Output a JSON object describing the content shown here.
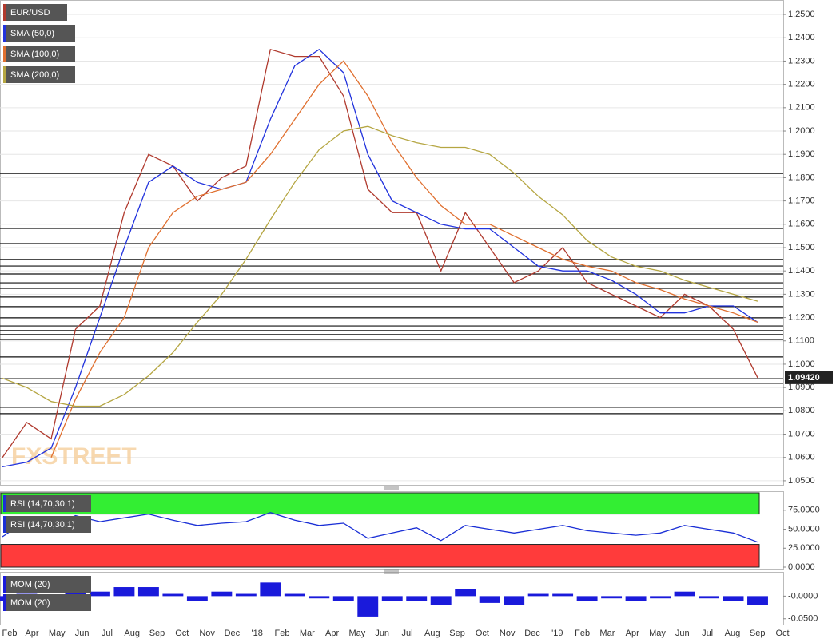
{
  "chart_data": [
    {
      "type": "line",
      "series": [
        {
          "name": "EUR/USD",
          "color": "#b03a2e",
          "values": [
            1.06,
            1.075,
            1.068,
            1.115,
            1.125,
            1.165,
            1.19,
            1.185,
            1.17,
            1.18,
            1.185,
            1.235,
            1.232,
            1.232,
            1.215,
            1.175,
            1.165,
            1.165,
            1.14,
            1.165,
            1.15,
            1.135,
            1.14,
            1.15,
            1.135,
            1.13,
            1.125,
            1.12,
            1.13,
            1.125,
            1.115,
            1.0942
          ]
        },
        {
          "name": "SMA (50,0)",
          "color": "#2233dd",
          "values": [
            1.056,
            1.058,
            1.064,
            1.09,
            1.12,
            1.15,
            1.178,
            1.185,
            1.178,
            1.175,
            1.178,
            1.205,
            1.228,
            1.235,
            1.225,
            1.19,
            1.17,
            1.165,
            1.16,
            1.158,
            1.158,
            1.15,
            1.142,
            1.14,
            1.14,
            1.136,
            1.13,
            1.122,
            1.122,
            1.125,
            1.125,
            1.118
          ]
        },
        {
          "name": "SMA (100,0)",
          "color": "#e07030",
          "values": [
            null,
            null,
            1.06,
            1.085,
            1.105,
            1.12,
            1.15,
            1.165,
            1.172,
            1.175,
            1.178,
            1.19,
            1.205,
            1.22,
            1.23,
            1.215,
            1.195,
            1.18,
            1.168,
            1.16,
            1.16,
            1.155,
            1.15,
            1.145,
            1.142,
            1.14,
            1.135,
            1.132,
            1.128,
            1.125,
            1.122,
            1.118
          ]
        },
        {
          "name": "SMA (200,0)",
          "color": "#b5a642",
          "values": [
            1.094,
            1.09,
            1.084,
            1.082,
            1.082,
            1.087,
            1.095,
            1.105,
            1.118,
            1.13,
            1.145,
            1.162,
            1.178,
            1.192,
            1.2,
            1.202,
            1.198,
            1.195,
            1.193,
            1.193,
            1.19,
            1.182,
            1.172,
            1.164,
            1.153,
            1.146,
            1.142,
            1.14,
            1.136,
            1.133,
            1.13,
            1.127
          ]
        }
      ],
      "ylim": [
        1.0486,
        1.2555
      ],
      "yticks": [
        {
          "value": 1.05,
          "label": "1.0500"
        },
        {
          "value": 1.06,
          "label": "1.0600"
        },
        {
          "value": 1.07,
          "label": "1.0700"
        },
        {
          "value": 1.08,
          "label": "1.0800"
        },
        {
          "value": 1.09,
          "label": "1.0900"
        },
        {
          "value": 1.1,
          "label": "1.1000"
        },
        {
          "value": 1.11,
          "label": "1.1100"
        },
        {
          "value": 1.12,
          "label": "1.1200"
        },
        {
          "value": 1.13,
          "label": "1.1300"
        },
        {
          "value": 1.14,
          "label": "1.1400"
        },
        {
          "value": 1.15,
          "label": "1.1500"
        },
        {
          "value": 1.16,
          "label": "1.1600"
        },
        {
          "value": 1.17,
          "label": "1.1700"
        },
        {
          "value": 1.18,
          "label": "1.1800"
        },
        {
          "value": 1.19,
          "label": "1.1900"
        },
        {
          "value": 1.2,
          "label": "1.2000"
        },
        {
          "value": 1.21,
          "label": "1.2100"
        },
        {
          "value": 1.22,
          "label": "1.2200"
        },
        {
          "value": 1.23,
          "label": "1.2300"
        },
        {
          "value": 1.24,
          "label": "1.2400"
        },
        {
          "value": 1.25,
          "label": "1.2500"
        }
      ],
      "grid": true,
      "levels": [
        1.1818,
        1.1582,
        1.1517,
        1.1449,
        1.1421,
        1.1387,
        1.1349,
        1.1325,
        1.1288,
        1.1247,
        1.1199,
        1.1164,
        1.1144,
        1.1127,
        1.1106,
        1.1031,
        1.0938,
        1.0918,
        1.0815,
        1.0788
      ],
      "last_price": {
        "value": 1.0942,
        "label": "1.09420"
      },
      "watermark": "FXSTREET",
      "x_labels": [
        "Feb",
        "Apr",
        "May",
        "Jun",
        "Jul",
        "Aug",
        "Sep",
        "Oct",
        "Nov",
        "Dec",
        "'18",
        "Feb",
        "Mar",
        "Apr",
        "May",
        "Jun",
        "Jul",
        "Aug",
        "Sep",
        "Oct",
        "Nov",
        "Dec",
        "'19",
        "Feb",
        "Mar",
        "Apr",
        "May",
        "Jun",
        "Jul",
        "Aug",
        "Sep",
        "Oct"
      ]
    },
    {
      "type": "line",
      "indicator_label": "RSI (14,70,30,1)",
      "series": [
        {
          "name": "RSI (14,70,30,1)",
          "color": "#1a2fd6",
          "values": [
            40,
            62,
            55,
            68,
            60,
            65,
            70,
            62,
            55,
            58,
            60,
            72,
            62,
            55,
            58,
            38,
            45,
            52,
            35,
            55,
            50,
            45,
            50,
            55,
            48,
            45,
            42,
            45,
            55,
            50,
            45,
            33
          ]
        }
      ],
      "ylim": [
        0,
        98
      ],
      "yticks": [
        {
          "value": 75,
          "label": "75.0000"
        },
        {
          "value": 50,
          "label": "50.0000"
        },
        {
          "value": 25,
          "label": "25.0000"
        },
        {
          "value": 0,
          "label": "0.0000"
        }
      ],
      "overbought": 70,
      "oversold": 30,
      "overbought_color": "#33ee33",
      "oversold_color": "#ff3b3b"
    },
    {
      "type": "bar",
      "indicator_label": "MOM (20)",
      "series": [
        {
          "name": "MOM (20)",
          "color": "#1a1adb",
          "values": [
            -0.01,
            0.005,
            -0.005,
            0.02,
            0.01,
            0.02,
            0.02,
            0.005,
            -0.01,
            0.01,
            0.005,
            0.03,
            0.005,
            -0.005,
            -0.01,
            -0.045,
            -0.01,
            -0.01,
            -0.02,
            0.015,
            -0.015,
            -0.02,
            0.005,
            0.005,
            -0.01,
            -0.005,
            -0.01,
            -0.005,
            0.01,
            -0.005,
            -0.01,
            -0.02
          ]
        }
      ],
      "ylim": [
        -0.061,
        0.05
      ],
      "yticks": [
        {
          "value": 0,
          "label": "-0.0000"
        },
        {
          "value": -0.05,
          "label": "-0.0500"
        }
      ]
    }
  ]
}
